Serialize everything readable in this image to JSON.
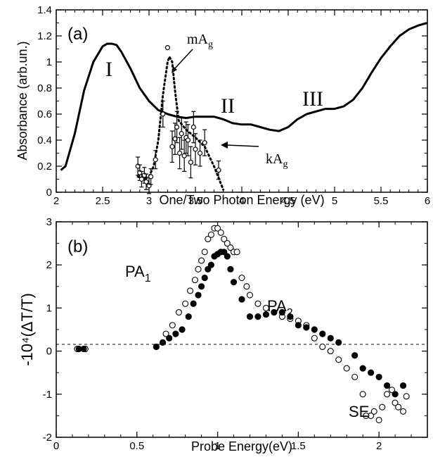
{
  "chart_data": [
    {
      "panel_label": "(a)",
      "type": "line",
      "xlabel": "One/Two Photon Energy (eV)",
      "ylabel": "Absorbance (arb.un.)",
      "xlim": [
        2,
        6
      ],
      "ylim": [
        0,
        1.4
      ],
      "xticks": [
        "2",
        "2.5",
        "3",
        "3.5",
        "4",
        "4.5",
        "5",
        "5.5",
        "6"
      ],
      "yticks": [
        "0",
        "0.2",
        "0.4",
        "0.6",
        "0.8",
        "1",
        "1.2",
        "1.4"
      ],
      "annotations": {
        "band_1": "I",
        "band_2": "II",
        "band_3": "III",
        "mag_label": "mA",
        "mag_sub": "g",
        "kag_label": "kA",
        "kag_sub": "g"
      },
      "series": [
        {
          "style": "solid",
          "x": [
            2.05,
            2.1,
            2.2,
            2.3,
            2.4,
            2.5,
            2.55,
            2.6,
            2.65,
            2.7,
            2.8,
            2.9,
            3.0,
            3.1,
            3.2,
            3.3,
            3.4,
            3.5,
            3.6,
            3.7,
            3.8,
            3.9,
            4.0,
            4.1,
            4.2,
            4.3,
            4.4,
            4.5,
            4.6,
            4.7,
            4.8,
            4.9,
            5.0,
            5.1,
            5.2,
            5.3,
            5.4,
            5.5,
            5.6,
            5.7,
            5.8,
            5.9,
            6.0
          ],
          "y": [
            0.17,
            0.2,
            0.45,
            0.78,
            1.0,
            1.12,
            1.14,
            1.14,
            1.13,
            1.08,
            0.95,
            0.8,
            0.7,
            0.63,
            0.6,
            0.58,
            0.57,
            0.58,
            0.58,
            0.58,
            0.56,
            0.53,
            0.52,
            0.52,
            0.5,
            0.48,
            0.47,
            0.5,
            0.56,
            0.6,
            0.62,
            0.64,
            0.64,
            0.66,
            0.71,
            0.8,
            0.92,
            1.03,
            1.12,
            1.2,
            1.25,
            1.28,
            1.3
          ]
        },
        {
          "style": "dotted",
          "x": [
            2.88,
            2.95,
            3.0,
            3.05,
            3.1,
            3.15,
            3.2,
            3.22,
            3.25,
            3.28,
            3.32,
            3.4,
            3.5,
            3.6,
            3.7,
            3.8
          ],
          "y": [
            0.12,
            0.1,
            0.12,
            0.2,
            0.4,
            0.75,
            1.0,
            1.04,
            1.0,
            0.78,
            0.55,
            0.48,
            0.42,
            0.35,
            0.2,
            0.02
          ]
        },
        {
          "style": "points_errorbars",
          "x": [
            2.88,
            2.9,
            2.92,
            2.95,
            2.97,
            3.0,
            3.02,
            3.07,
            3.15,
            3.2,
            3.25,
            3.28,
            3.3,
            3.33,
            3.35,
            3.38,
            3.4,
            3.42,
            3.45,
            3.48,
            3.5,
            3.55,
            3.6,
            3.75
          ],
          "y": [
            0.2,
            0.15,
            0.1,
            0.13,
            0.08,
            0.05,
            0.12,
            0.25,
            0.6,
            1.11,
            0.35,
            0.41,
            0.5,
            0.3,
            0.45,
            0.28,
            0.42,
            0.4,
            0.23,
            0.5,
            0.33,
            0.3,
            0.38,
            0.17
          ],
          "err": [
            0.07,
            0.06,
            0.06,
            0.06,
            0.06,
            0.06,
            0.06,
            0.07,
            0.1,
            0.0,
            0.12,
            0.12,
            0.12,
            0.12,
            0.12,
            0.12,
            0.12,
            0.12,
            0.12,
            0.12,
            0.12,
            0.1,
            0.1,
            0.07
          ]
        }
      ]
    },
    {
      "panel_label": "(b)",
      "type": "scatter",
      "xlabel": "Probe Energy(eV)",
      "ylabel": "-10⁴(ΔT/T)",
      "xlim": [
        0,
        2.3
      ],
      "ylim": [
        -2,
        3
      ],
      "xticks": [
        "0",
        "0.5",
        "1",
        "1.5",
        "2"
      ],
      "yticks": [
        "-2",
        "-1",
        "0",
        "1",
        "2",
        "3"
      ],
      "annotations": {
        "pa1": "PA",
        "pa1_sub": "1",
        "pa2": "PA",
        "pa2_sub": "2",
        "se": "SE"
      },
      "series": [
        {
          "marker": "open",
          "x": [
            0.13,
            0.18,
            0.68,
            0.72,
            0.76,
            0.8,
            0.83,
            0.86,
            0.88,
            0.9,
            0.92,
            0.94,
            0.96,
            0.98,
            1.0,
            1.02,
            1.04,
            1.06,
            1.08,
            1.1,
            1.12,
            1.15,
            1.18,
            1.2,
            1.25,
            1.3,
            1.35,
            1.4,
            1.45,
            1.5,
            1.55,
            1.6,
            1.65,
            1.7,
            1.75,
            1.8,
            1.85,
            1.9,
            1.95,
            2.0,
            2.02,
            2.05,
            2.08,
            2.1,
            2.15,
            1.92,
            1.97,
            2.12,
            2.17
          ],
          "y": [
            0.05,
            0.05,
            0.4,
            0.6,
            0.9,
            1.1,
            1.4,
            1.65,
            1.9,
            2.1,
            2.3,
            2.6,
            2.7,
            2.85,
            2.85,
            2.75,
            2.6,
            2.5,
            2.4,
            2.3,
            2.3,
            1.7,
            1.5,
            1.3,
            1.1,
            1.0,
            0.9,
            0.8,
            0.75,
            0.7,
            0.6,
            0.3,
            0.1,
            0.0,
            -0.2,
            -0.4,
            -0.6,
            -1.0,
            -1.5,
            -1.6,
            -1.3,
            -1.0,
            -0.9,
            -1.2,
            -1.4,
            -1.5,
            -1.4,
            -1.3,
            -1.05
          ]
        },
        {
          "marker": "filled",
          "x": [
            0.14,
            0.17,
            0.62,
            0.66,
            0.7,
            0.74,
            0.78,
            0.82,
            0.85,
            0.88,
            0.9,
            0.92,
            0.94,
            0.96,
            0.98,
            1.0,
            1.02,
            1.04,
            1.06,
            1.08,
            1.1,
            1.15,
            1.2,
            1.25,
            1.3,
            1.35,
            1.4,
            1.45,
            1.5,
            1.55,
            1.6,
            1.65,
            1.7,
            1.75,
            1.85,
            1.9,
            1.95,
            2.0,
            2.05,
            2.1,
            2.15
          ],
          "y": [
            0.05,
            0.05,
            0.1,
            0.2,
            0.3,
            0.4,
            0.5,
            0.8,
            1.1,
            1.3,
            1.5,
            1.7,
            1.9,
            2.0,
            2.2,
            2.25,
            2.3,
            2.3,
            2.2,
            1.9,
            1.6,
            1.2,
            0.8,
            0.8,
            0.85,
            0.9,
            0.9,
            0.8,
            0.6,
            0.55,
            0.5,
            0.4,
            0.3,
            0.2,
            -0.1,
            -0.4,
            -0.5,
            -0.6,
            -0.8,
            -1.0,
            -0.8
          ]
        }
      ]
    }
  ]
}
